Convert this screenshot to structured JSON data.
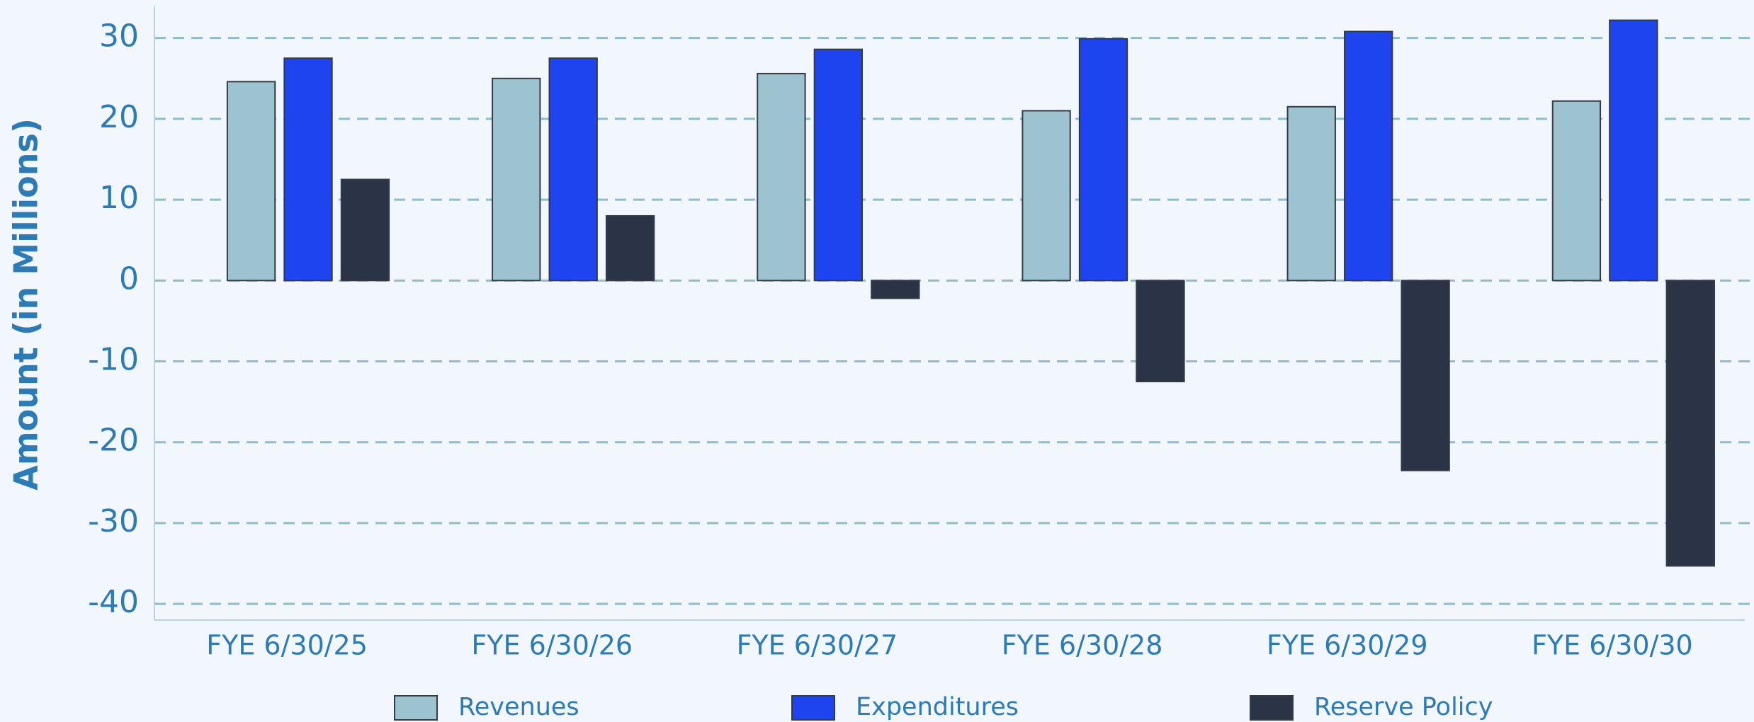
{
  "chart_data": {
    "type": "bar",
    "y_label": "Amount (in Millions)",
    "categories": [
      "FYE 6/30/25",
      "FYE 6/30/26",
      "FYE 6/30/27",
      "FYE 6/30/28",
      "FYE 6/30/29",
      "FYE 6/30/30"
    ],
    "series": [
      {
        "name": "Revenues",
        "color": "#9dc3d1",
        "values": [
          24.6,
          25,
          25.6,
          21,
          21.5,
          22.2
        ]
      },
      {
        "name": "Expenditures",
        "color": "#1e44f0",
        "values": [
          27.5,
          27.5,
          28.6,
          29.9,
          30.8,
          32.2
        ]
      },
      {
        "name": "Reserve Policy",
        "color": "#2b3447",
        "values": [
          12.5,
          8,
          -2.2,
          -12.5,
          -23.5,
          -35.3
        ]
      }
    ],
    "ylim": [
      -42,
      34
    ],
    "yticks": [
      -40,
      -30,
      -20,
      -10,
      0,
      10,
      20,
      30
    ],
    "grid": true,
    "legend": "bottom"
  }
}
